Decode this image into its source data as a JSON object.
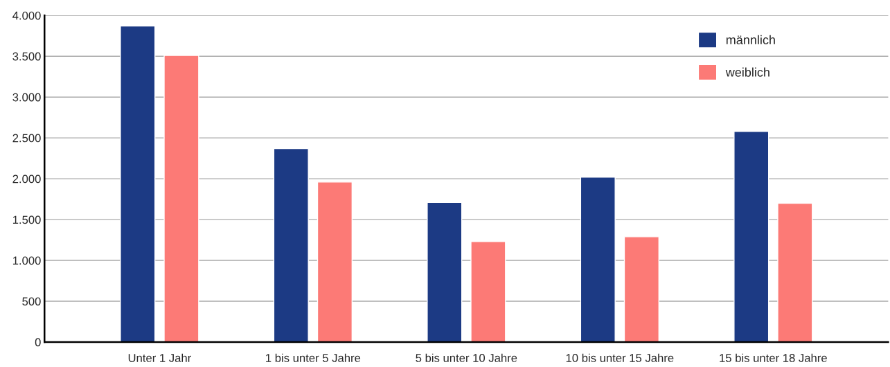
{
  "chart_data": {
    "type": "bar",
    "categories": [
      "Unter 1 Jahr",
      "1 bis unter 5 Jahre",
      "5 bis unter 10 Jahre",
      "10 bis unter 15 Jahre",
      "15 bis unter 18 Jahre"
    ],
    "series": [
      {
        "name": "männlich",
        "color": "#1c3a84",
        "values": [
          3870,
          2370,
          1710,
          2020,
          2580
        ]
      },
      {
        "name": "weiblich",
        "color": "#fc7a76",
        "values": [
          3510,
          1960,
          1230,
          1290,
          1700
        ]
      }
    ],
    "ylim": [
      0,
      4000
    ],
    "yticks": [
      {
        "value": 0,
        "label": "0"
      },
      {
        "value": 500,
        "label": "500"
      },
      {
        "value": 1000,
        "label": "1.000"
      },
      {
        "value": 1500,
        "label": "1.500"
      },
      {
        "value": 2000,
        "label": "2.000"
      },
      {
        "value": 2500,
        "label": "2.500"
      },
      {
        "value": 3000,
        "label": "3.000"
      },
      {
        "value": 3500,
        "label": "3.500"
      },
      {
        "value": 4000,
        "label": "4.000"
      }
    ],
    "grid": "y",
    "legend": "top right"
  }
}
